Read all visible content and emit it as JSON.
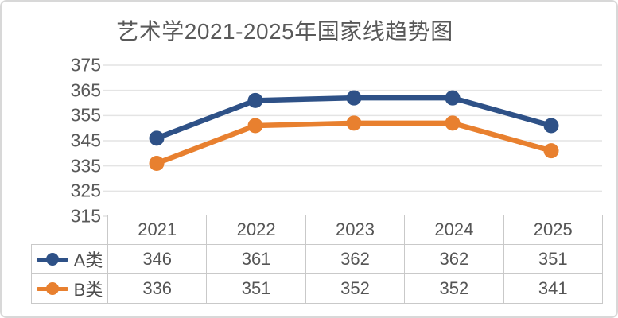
{
  "chart": {
    "title": "艺术学2021-2025年国家线趋势图"
  },
  "chart_data": {
    "type": "line",
    "title": "艺术学2021-2025年国家线趋势图",
    "categories": [
      "2021",
      "2022",
      "2023",
      "2024",
      "2025"
    ],
    "series": [
      {
        "name": "A类",
        "values": [
          346,
          361,
          362,
          362,
          351
        ],
        "color": "#2E5187"
      },
      {
        "name": "B类",
        "values": [
          336,
          351,
          352,
          352,
          341
        ],
        "color": "#E8802F"
      }
    ],
    "xlabel": "",
    "ylabel": "",
    "ylim": [
      315,
      375
    ],
    "yticks": [
      375,
      365,
      355,
      345,
      335,
      325,
      315
    ],
    "grid": "horizontal",
    "legend_position": "table-left",
    "data_table": true,
    "ui_colors": {
      "series_a_blue": "#2E5187",
      "series_b_orange": "#E8802F",
      "text_gray": "#595959",
      "gridline": "#E4E4E4",
      "table_border": "#C9C9C9",
      "canvas_border": "#D8D8D8"
    }
  }
}
